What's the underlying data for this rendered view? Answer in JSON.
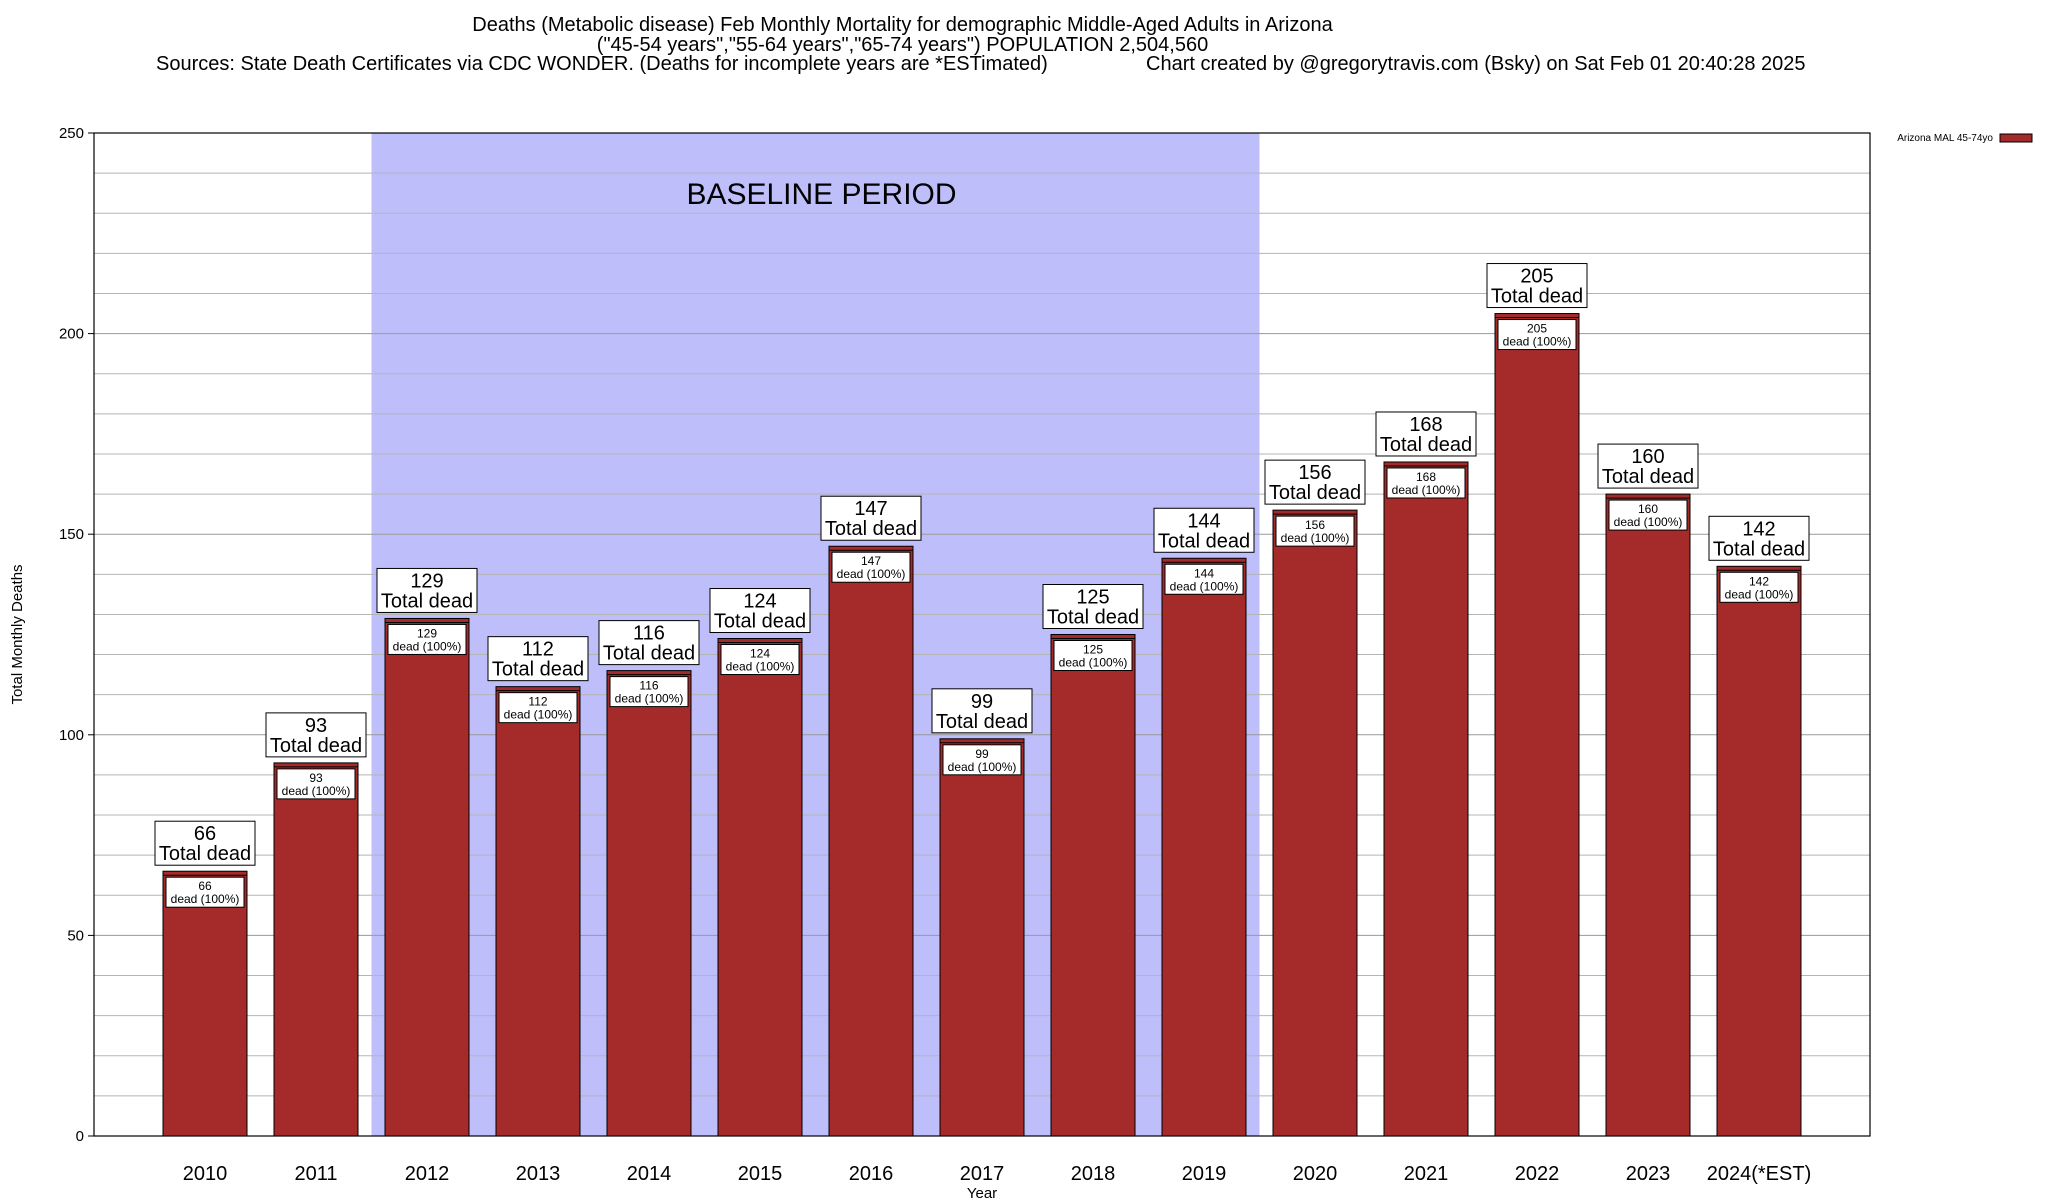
{
  "chart_data": {
    "type": "bar",
    "title": "Deaths (Metabolic disease) Feb Monthly Mortality for demographic Middle-Aged Adults in Arizona",
    "subtitle": "(\"45-54 years\",\"55-64 years\",\"65-74 years\") POPULATION 2,504,560",
    "sources": "Sources: State Death Certificates via CDC WONDER. (Deaths for incomplete years are *ESTimated)",
    "credit": "Chart created by @gregorytravis.com (Bsky) on Sat Feb 01 20:40:28 2025",
    "xlabel": "Year",
    "ylabel": "Total Monthly Deaths",
    "ylim": [
      0,
      250
    ],
    "ytick_labels": [
      "0",
      "50",
      "100",
      "150",
      "200",
      "250"
    ],
    "grid": true,
    "legend": {
      "placement": "top-right",
      "entries": [
        "Arizona MAL 45-74yo"
      ]
    },
    "shaded_region": {
      "label": "BASELINE PERIOD",
      "from": "2012",
      "to": "2019",
      "color": "#bebefb"
    },
    "bar_color": "#a52a2a",
    "categories": [
      "2010",
      "2011",
      "2012",
      "2013",
      "2014",
      "2015",
      "2016",
      "2017",
      "2018",
      "2019",
      "2020",
      "2021",
      "2022",
      "2023",
      "2024(*EST)"
    ],
    "series": [
      {
        "name": "Arizona MAL 45-74yo",
        "values": [
          66,
          93,
          129,
          112,
          116,
          124,
          147,
          99,
          125,
          144,
          156,
          168,
          205,
          160,
          142
        ]
      }
    ],
    "total_label_suffix": "Total dead",
    "inner_label_suffix": "dead (100%)"
  }
}
